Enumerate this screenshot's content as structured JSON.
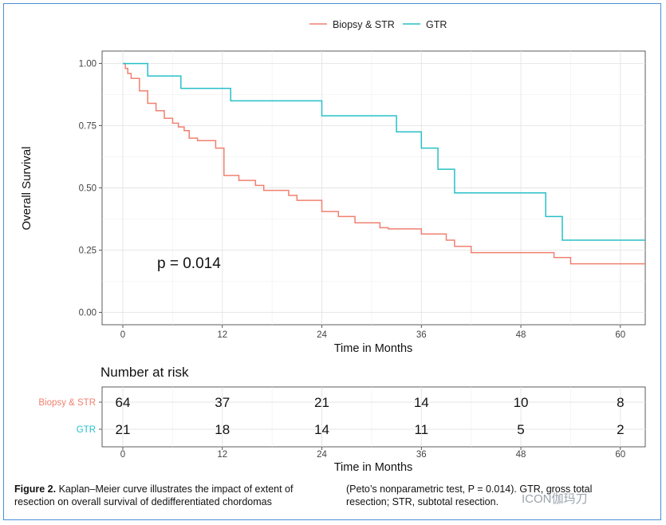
{
  "chart_data": {
    "type": "line",
    "subtype": "kaplan-meier step",
    "xlabel": "Time in Months",
    "ylabel": "Overall Survival",
    "xlim": [
      -2.5,
      63
    ],
    "ylim": [
      -0.05,
      1.05
    ],
    "xticks": [
      "0",
      "12",
      "24",
      "36",
      "48",
      "60"
    ],
    "yticks": [
      "0.00",
      "0.25",
      "0.50",
      "0.75",
      "1.00"
    ],
    "grid": true,
    "legend_position": "top",
    "annotation": "p = 0.014",
    "series": [
      {
        "name": "Biopsy & STR",
        "color": "#f08070",
        "x": [
          0,
          0.3,
          0.6,
          1.0,
          2.0,
          3.0,
          4.0,
          5.0,
          6.0,
          6.7,
          7.4,
          8.0,
          9.0,
          11.2,
          12.2,
          14.0,
          16.0,
          17.0,
          20.0,
          21.0,
          24.0,
          26.0,
          28.0,
          30.0,
          31.0,
          32.0,
          36.0,
          39.0,
          40.0,
          42.0,
          52.0,
          54.0,
          64.0
        ],
        "y": [
          1.0,
          0.98,
          0.96,
          0.94,
          0.89,
          0.84,
          0.81,
          0.78,
          0.76,
          0.745,
          0.73,
          0.7,
          0.69,
          0.66,
          0.55,
          0.53,
          0.51,
          0.49,
          0.47,
          0.45,
          0.405,
          0.385,
          0.36,
          0.36,
          0.34,
          0.335,
          0.315,
          0.29,
          0.265,
          0.24,
          0.22,
          0.195,
          0.195
        ]
      },
      {
        "name": "GTR",
        "color": "#27c0c8",
        "x": [
          0,
          3.0,
          7.0,
          13.0,
          24.0,
          33.0,
          36.0,
          38.0,
          40.0,
          51.0,
          53.0,
          64.0
        ],
        "y": [
          1.0,
          0.95,
          0.9,
          0.85,
          0.79,
          0.725,
          0.66,
          0.575,
          0.48,
          0.385,
          0.29,
          0.29
        ]
      }
    ],
    "risk_table": {
      "title": "Number at risk",
      "xlabel": "Time in Months",
      "rows": [
        {
          "name": "Biopsy & STR",
          "color": "#f08070",
          "values": [
            "64",
            "37",
            "21",
            "14",
            "10",
            "8"
          ]
        },
        {
          "name": "GTR",
          "color": "#27c0c8",
          "values": [
            "21",
            "18",
            "14",
            "11",
            "5",
            "2"
          ]
        }
      ]
    }
  },
  "caption": {
    "label": "Figure 2.",
    "left_text": " Kaplan–Meier curve illustrates the impact of extent of resection on overall survival of dedifferentiated chordomas",
    "right_text": "(Peto’s nonparametric test, P = 0.014). GTR, gross total resection; STR, subtotal resection."
  },
  "watermark": "ICON伽玛刀"
}
